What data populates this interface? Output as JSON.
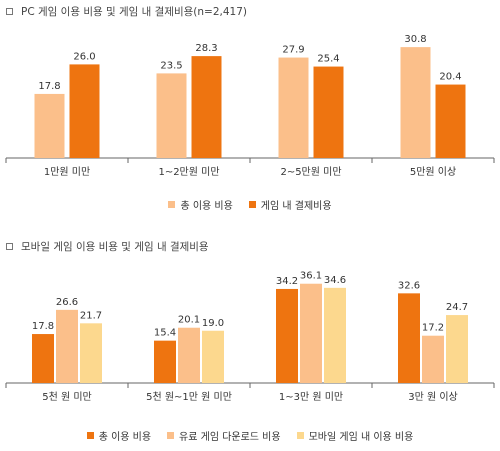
{
  "chart_data": [
    {
      "type": "bar",
      "title": "PC 게임 이용 비용 및 게임 내 결제비용(n=2,417)",
      "categories": [
        "1만원 미만",
        "1~2만원 미만",
        "2~5만원 미만",
        "5만원 이상"
      ],
      "series": [
        {
          "name": "총 이용 비용",
          "values": [
            17.8,
            23.5,
            27.9,
            30.8
          ],
          "color": "#FBBF8A"
        },
        {
          "name": "게임 내 결제비용",
          "values": [
            26.0,
            28.3,
            25.4,
            20.4
          ],
          "color": "#EE7410"
        }
      ],
      "ylim": [
        0,
        35
      ],
      "grid": false,
      "legend_position": "bottom"
    },
    {
      "type": "bar",
      "title": "모바일 게임 이용 비용 및 게임 내 결제비용",
      "categories": [
        "5천 원 미만",
        "5천 원~1만 원 미만",
        "1~3만 원 미만",
        "3만 원 이상"
      ],
      "series": [
        {
          "name": "총 이용 비용",
          "values": [
            17.8,
            15.4,
            34.2,
            32.6
          ],
          "color": "#EE7410"
        },
        {
          "name": "유료 게임 다운로드 비용",
          "values": [
            26.6,
            20.1,
            36.1,
            17.2
          ],
          "color": "#FBBF8A"
        },
        {
          "name": "모바일 게임 내 이용 비용",
          "values": [
            21.7,
            19.0,
            34.6,
            24.7
          ],
          "color": "#FCD88E"
        }
      ],
      "ylim": [
        0,
        40
      ],
      "grid": false,
      "legend_position": "bottom"
    }
  ]
}
